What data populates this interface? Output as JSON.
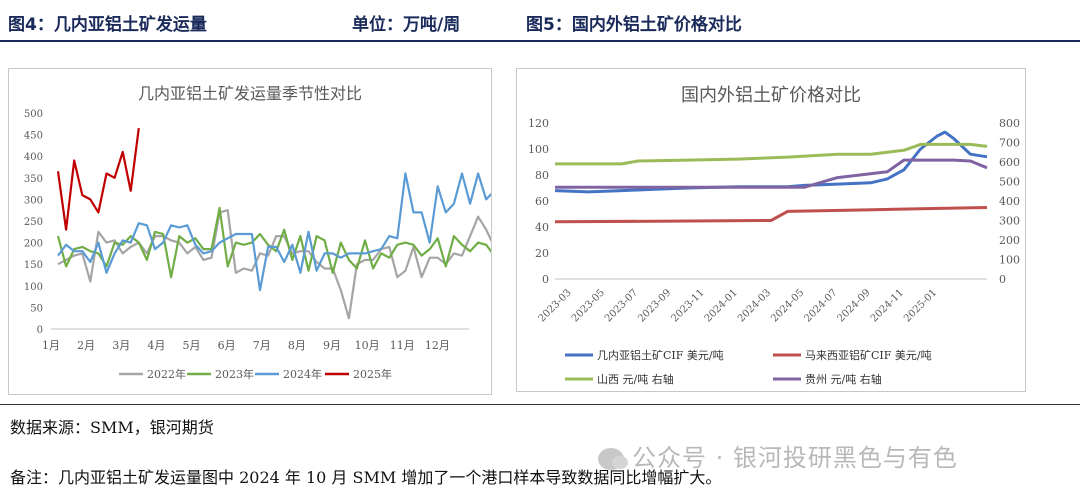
{
  "header": {
    "fig4_title": "图4：几内亚铝土矿发运量",
    "fig4_unit": "单位：万吨/周",
    "fig5_title": "图5：国内外铝土矿价格对比"
  },
  "footer": {
    "source": "数据来源：SMM，银河期货",
    "note": "备注：几内亚铝土矿发运量图中 2024 年 10 月 SMM 增加了一个港口样本导致数据同比增幅扩大。",
    "watermark": "公众号 · 银河投研黑色与有色"
  },
  "chart_data": [
    {
      "type": "line",
      "title": "几内亚铝土矿发运量季节性对比",
      "ylim": [
        0,
        500
      ],
      "yticks": [
        "0",
        "50",
        "100",
        "150",
        "200",
        "250",
        "300",
        "350",
        "400",
        "450",
        "500"
      ],
      "xlim": [
        1,
        12.9
      ],
      "xticks": [
        "1月",
        "2月",
        "3月",
        "4月",
        "5月",
        "6月",
        "7月",
        "8月",
        "9月",
        "10月",
        "11月",
        "12月"
      ],
      "legend_position": "bottom",
      "grid": false,
      "series": [
        {
          "name": "2022年",
          "color": "#a5a5a5",
          "x_start": 1.2,
          "x_step": 0.23,
          "values": [
            150,
            160,
            170,
            175,
            110,
            225,
            200,
            205,
            175,
            190,
            200,
            175,
            215,
            215,
            205,
            200,
            175,
            190,
            160,
            165,
            270,
            275,
            130,
            140,
            135,
            175,
            170,
            215,
            215,
            175,
            180,
            180,
            155,
            140,
            140,
            90,
            25,
            150,
            160,
            160,
            185,
            190,
            120,
            135,
            190,
            120,
            165,
            165,
            150,
            175,
            170,
            215,
            260,
            230,
            190,
            185,
            105,
            220
          ]
        },
        {
          "name": "2023年",
          "color": "#70ad47",
          "x_start": 1.2,
          "x_step": 0.23,
          "values": [
            215,
            145,
            185,
            190,
            180,
            175,
            145,
            200,
            195,
            215,
            200,
            160,
            225,
            220,
            120,
            215,
            200,
            210,
            185,
            185,
            280,
            145,
            200,
            195,
            200,
            220,
            195,
            180,
            230,
            160,
            215,
            135,
            215,
            205,
            130,
            200,
            160,
            140,
            205,
            140,
            175,
            165,
            195,
            200,
            195,
            170,
            185,
            210,
            145,
            215,
            195,
            180,
            200,
            195,
            170,
            185,
            190,
            230
          ]
        },
        {
          "name": "2024年",
          "color": "#5b9bd5",
          "x_start": 1.2,
          "x_step": 0.23,
          "values": [
            170,
            195,
            180,
            180,
            155,
            200,
            130,
            175,
            205,
            200,
            245,
            240,
            185,
            200,
            240,
            235,
            240,
            195,
            175,
            180,
            200,
            210,
            220,
            220,
            220,
            90,
            190,
            190,
            155,
            195,
            130,
            225,
            135,
            175,
            175,
            165,
            175,
            175,
            175,
            180,
            185,
            215,
            210,
            360,
            270,
            270,
            200,
            330,
            270,
            290,
            360,
            290,
            360,
            300,
            320
          ]
        },
        {
          "name": "2025年",
          "color": "#c00000",
          "x_start": 1.2,
          "x_step": 0.23,
          "values": [
            365,
            230,
            390,
            310,
            300,
            270,
            360,
            350,
            410,
            320,
            465
          ]
        }
      ]
    },
    {
      "type": "line",
      "title": "国内外铝土矿价格对比",
      "ylim_left": [
        0,
        120
      ],
      "yticks_left": [
        "0",
        "20",
        "40",
        "60",
        "80",
        "100",
        "120"
      ],
      "ylim_right": [
        0,
        800
      ],
      "yticks_right": [
        "0",
        "100",
        "200",
        "300",
        "400",
        "500",
        "600",
        "700",
        "800"
      ],
      "xlim": [
        "2023-02",
        "2025-04"
      ],
      "xticks": [
        "2023-03",
        "2023-05",
        "2023-07",
        "2023-09",
        "2023-11",
        "2024-01",
        "2024-03",
        "2024-05",
        "2024-07",
        "2024-09",
        "2024-11",
        "2025-01"
      ],
      "legend_position": "bottom",
      "grid": false,
      "series": [
        {
          "name": "几内亚铝土矿CIF 美元/吨",
          "axis": "left",
          "color": "#4472c4",
          "points": [
            [
              "2023-02",
              68
            ],
            [
              "2023-04",
              67
            ],
            [
              "2023-06",
              68
            ],
            [
              "2023-08",
              69
            ],
            [
              "2023-10",
              70
            ],
            [
              "2024-01",
              71
            ],
            [
              "2024-04",
              71
            ],
            [
              "2024-05",
              72
            ],
            [
              "2024-07",
              73
            ],
            [
              "2024-09",
              74
            ],
            [
              "2024-10",
              77
            ],
            [
              "2024-11",
              84
            ],
            [
              "2024-12",
              100
            ],
            [
              "2025-01",
              110
            ],
            [
              "2025-01-15",
              113
            ],
            [
              "2025-02",
              108
            ],
            [
              "2025-03",
              96
            ],
            [
              "2025-04",
              94
            ]
          ]
        },
        {
          "name": "马来西亚铝矿CIF 美元/吨",
          "axis": "left",
          "color": "#c0504d",
          "points": [
            [
              "2023-02",
              44
            ],
            [
              "2024-03",
              45
            ],
            [
              "2024-04",
              52
            ],
            [
              "2024-08",
              53
            ],
            [
              "2024-12",
              54
            ],
            [
              "2025-04",
              55
            ]
          ]
        },
        {
          "name": "山西 元/吨 右轴",
          "axis": "right",
          "color": "#9bbb59",
          "points": [
            [
              "2023-02",
              590
            ],
            [
              "2023-06",
              590
            ],
            [
              "2023-07",
              605
            ],
            [
              "2023-10",
              610
            ],
            [
              "2024-01",
              615
            ],
            [
              "2024-04",
              625
            ],
            [
              "2024-07",
              640
            ],
            [
              "2024-09",
              640
            ],
            [
              "2024-11",
              660
            ],
            [
              "2024-12",
              690
            ],
            [
              "2025-01",
              690
            ],
            [
              "2025-03",
              690
            ],
            [
              "2025-04",
              680
            ]
          ]
        },
        {
          "name": "贵州 元/吨 右轴",
          "axis": "right",
          "color": "#8064a2",
          "points": [
            [
              "2023-02",
              470
            ],
            [
              "2024-05",
              470
            ],
            [
              "2024-07",
              520
            ],
            [
              "2024-10",
              550
            ],
            [
              "2024-11",
              610
            ],
            [
              "2025-02",
              610
            ],
            [
              "2025-03",
              605
            ],
            [
              "2025-04",
              570
            ]
          ]
        }
      ]
    }
  ]
}
